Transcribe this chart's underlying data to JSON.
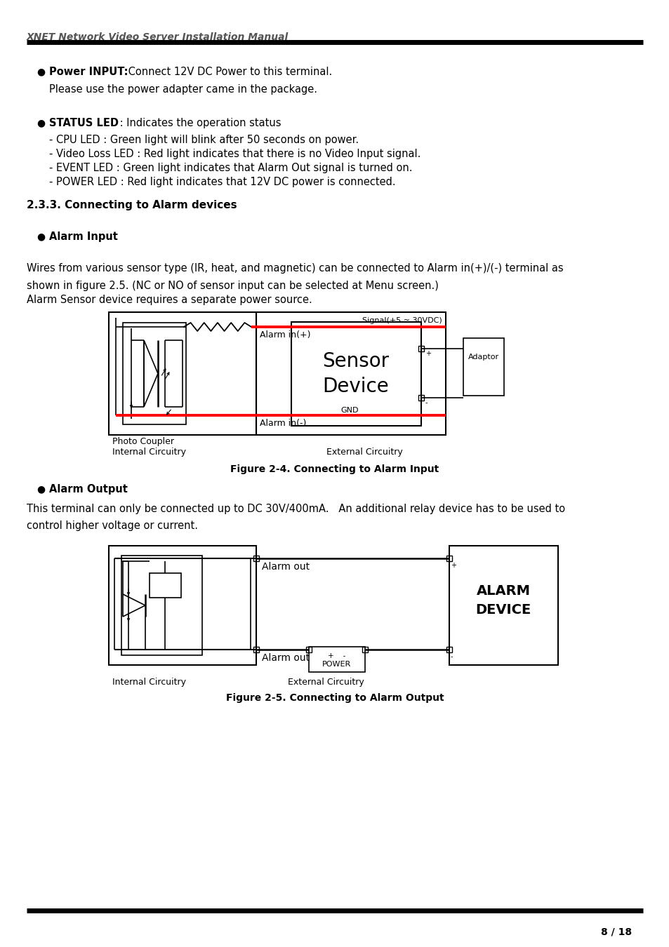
{
  "title_text": "XNET Network Video Server Installation Manual",
  "bg_color": "#ffffff",
  "page_number": "8 / 18",
  "power_input_bold": "Power INPUT:",
  "power_input_normal": " Connect 12V DC Power to this terminal.",
  "power_input_extra": "Please use the power adapter came in the package.",
  "status_led_bold": "STATUS LED",
  "status_led_normal": " : Indicates the operation status",
  "status_led_items": [
    "- CPU LED : Green light will blink after 50 seconds on power.",
    "- Video Loss LED : Red light indicates that there is no Video Input signal.",
    "- EVENT LED : Green light indicates that Alarm Out signal is turned on.",
    "- POWER LED : Red light indicates that 12V DC power is connected."
  ],
  "section_heading": "2.3.3. Connecting to Alarm devices",
  "alarm_input_heading": "Alarm Input",
  "alarm_input_text1": "Wires from various sensor type (IR, heat, and magnetic) can be connected to Alarm in(+)/(-) terminal as",
  "alarm_input_text2": "shown in figure 2.5. (NC or NO of sensor input can be selected at Menu screen.)",
  "alarm_input_text3": "Alarm Sensor device requires a separate power source.",
  "fig24_caption": "Figure 2-4. Connecting to Alarm Input",
  "alarm_output_heading": "Alarm Output",
  "alarm_output_text1": "This terminal can only be connected up to DC 30V/400mA.   An additional relay device has to be used to",
  "alarm_output_text2": "control higher voltage or current.",
  "fig25_caption": "Figure 2-5. Connecting to Alarm Output",
  "signal_label": "Signal(+5 ~ 30VDC)",
  "gnd_label": "GND",
  "alarm_in_plus": "Alarm in(+)",
  "alarm_in_minus": "Alarm in(-)",
  "photo_coupler": "Photo Coupler",
  "internal_circuitry": "Internal Circuitry",
  "external_circuitry": "External Circuitry",
  "sensor_line1": "Sensor",
  "sensor_line2": "Device",
  "adaptor_label": "Adaptor",
  "alarm_out": "Alarm out",
  "alarm_device_line1": "ALARM",
  "alarm_device_line2": "DEVICE",
  "power_label": "POWER",
  "red_color": "#ff0000",
  "black_color": "#000000",
  "gray_title": "#555555"
}
